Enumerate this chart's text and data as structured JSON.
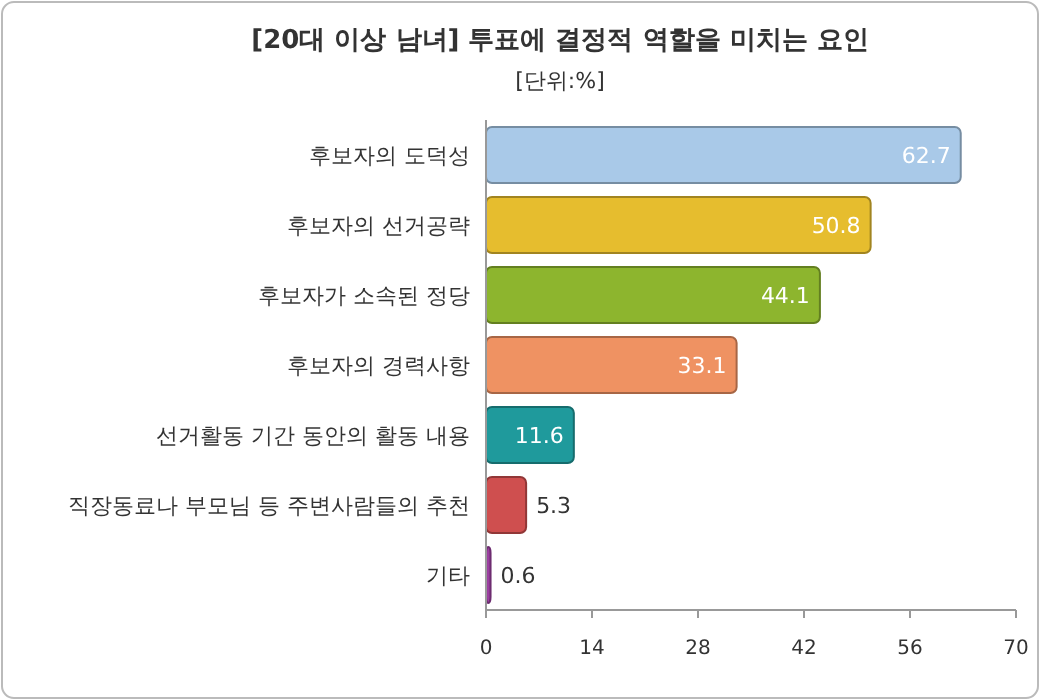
{
  "chart_data": {
    "type": "bar",
    "orientation": "horizontal",
    "title": "[20대 이상 남녀] 투표에 결정적 역할을 미치는 요인",
    "subtitle": "[단위:%]",
    "categories": [
      "후보자의 도덕성",
      "후보자의 선거공략",
      "후보자가 소속된 정당",
      "후보자의 경력사항",
      "선거활동 기간 동안의 활동 내용",
      "직장동료나 부모님 등 주변사람들의 추천",
      "기타"
    ],
    "values": [
      62.7,
      50.8,
      44.1,
      33.1,
      11.6,
      5.3,
      0.6
    ],
    "colors": [
      "#a9c9e8",
      "#e6bd2e",
      "#8db52e",
      "#ef9262",
      "#1f9a9c",
      "#cf4f4f",
      "#9b3fa0"
    ],
    "xlim": [
      0,
      70
    ],
    "xticks": [
      0,
      14,
      28,
      42,
      56,
      70
    ],
    "data_labels": true
  }
}
